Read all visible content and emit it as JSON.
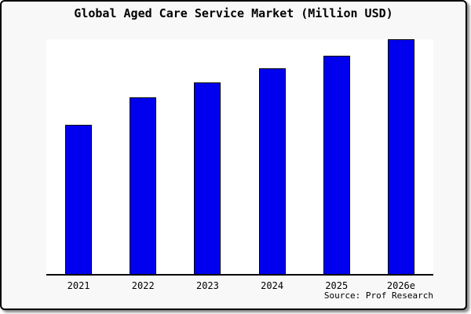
{
  "title": "Global Aged Care Service Market (Million USD)",
  "source_label": "Source: Prof Research",
  "colors": {
    "background": "#f8f8f8",
    "plot_background": "#ffffff",
    "bar_fill": "#0000ee",
    "bar_border": "#000000",
    "axis": "#000000",
    "frame_border": "#000000",
    "text": "#000000"
  },
  "chart_data": {
    "type": "bar",
    "title": "Global Aged Care Service Market (Million USD)",
    "categories": [
      "2021",
      "2022",
      "2023",
      "2024",
      "2025",
      "2026e"
    ],
    "values": [
      63.5,
      75.1,
      81.7,
      87.7,
      93.0,
      100.0
    ],
    "value_note": "y-axis has no ticks or labels; values are relative bar heights estimated from pixels, normalized so 2026e = 100",
    "xlabel": "",
    "ylabel": "",
    "ylim": [
      0,
      100
    ],
    "grid": false,
    "legend": null,
    "annotation": "Source: Prof Research"
  }
}
